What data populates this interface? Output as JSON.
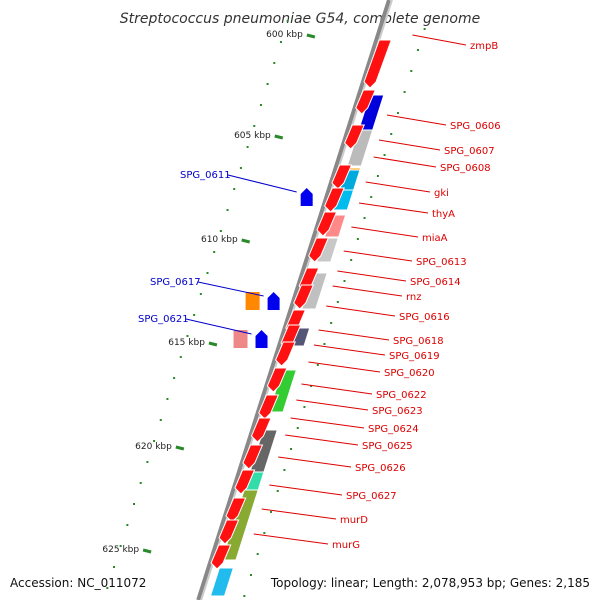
{
  "title": "Streptococcus pneumoniae G54, complete genome",
  "footer": {
    "accession": "Accession: NC_011072",
    "summary": "Topology: linear; Length: 2,078,953 bp; Genes: 2,185"
  },
  "scale": {
    "ticks": [
      "600 kbp",
      "605 kbp",
      "610 kbp",
      "615 kbp",
      "620 kbp",
      "625 kbp"
    ]
  },
  "colors": {
    "forward_label": "#dd0000",
    "reverse_label": "#0000cc",
    "backbone": "#888888",
    "tick": "#2a8a2a"
  },
  "forward_genes": [
    {
      "label": "zmpB"
    },
    {
      "label": "SPG_0606"
    },
    {
      "label": "SPG_0607"
    },
    {
      "label": "SPG_0608"
    },
    {
      "label": "gki"
    },
    {
      "label": "thyA"
    },
    {
      "label": "miaA"
    },
    {
      "label": "SPG_0613"
    },
    {
      "label": "SPG_0614"
    },
    {
      "label": "rnz"
    },
    {
      "label": "SPG_0616"
    },
    {
      "label": "SPG_0618"
    },
    {
      "label": "SPG_0619"
    },
    {
      "label": "SPG_0620"
    },
    {
      "label": "SPG_0622"
    },
    {
      "label": "SPG_0623"
    },
    {
      "label": "SPG_0624"
    },
    {
      "label": "SPG_0625"
    },
    {
      "label": "SPG_0626"
    },
    {
      "label": "SPG_0627"
    },
    {
      "label": "murD"
    },
    {
      "label": "murG"
    }
  ],
  "reverse_genes": [
    {
      "label": "SPG_0611"
    },
    {
      "label": "SPG_0617"
    },
    {
      "label": "SPG_0621"
    }
  ]
}
